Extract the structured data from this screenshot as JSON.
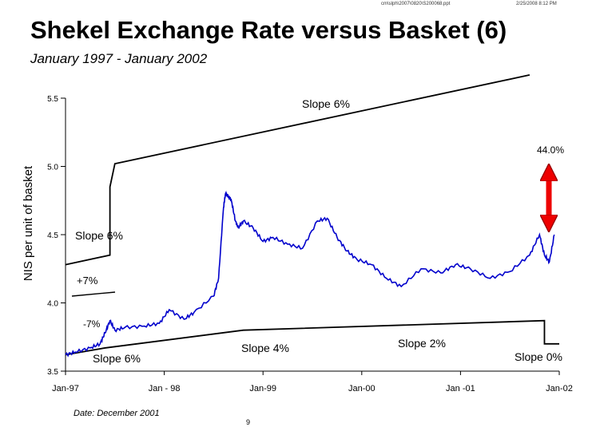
{
  "header": {
    "path": "cm\\slph\\2007\\0820\\S200068.ppt",
    "timestamp": "2/25/2008 8:12 PM"
  },
  "footer": {
    "date": "Date: December 2001",
    "page": "9"
  },
  "chart_data": {
    "type": "line",
    "title": "Shekel Exchange Rate versus Basket (6)",
    "subtitle": "January 1997 - January 2002",
    "ylabel": "NIS per unit of basket",
    "xlabel": "",
    "xlim": [
      1997.0,
      2002.0
    ],
    "ylim": [
      3.5,
      5.5
    ],
    "yticks": [
      3.5,
      4.0,
      4.5,
      5.0,
      5.5
    ],
    "ytick_labels": [
      "3.5",
      "4.0",
      "4.5",
      "5.0",
      "5.5"
    ],
    "xticks": [
      1997.0,
      1998.0,
      1999.0,
      2000.0,
      2001.0,
      2002.0
    ],
    "xtick_labels": [
      "Jan-97",
      "Jan - 98",
      "Jan-99",
      "Jan-00",
      "Jan -01",
      "Jan-02"
    ],
    "grid": false,
    "series": [
      {
        "name": "",
        "color": "#0000cc",
        "x": [
          1997.0,
          1997.1,
          1997.25,
          1997.35,
          1997.4,
          1997.45,
          1997.5,
          1997.6,
          1997.8,
          1997.95,
          1998.05,
          1998.2,
          1998.3,
          1998.5,
          1998.55,
          1998.6,
          1998.62,
          1998.65,
          1998.68,
          1998.72,
          1998.75,
          1998.8,
          1998.9,
          1999.0,
          1999.1,
          1999.25,
          1999.4,
          1999.55,
          1999.65,
          1999.75,
          1999.85,
          1999.95,
          2000.1,
          2000.25,
          2000.4,
          2000.6,
          2000.8,
          2000.95,
          2001.1,
          2001.3,
          2001.5,
          2001.7,
          2001.8,
          2001.85,
          2001.9,
          2001.95
        ],
        "y": [
          3.62,
          3.64,
          3.67,
          3.7,
          3.78,
          3.87,
          3.8,
          3.82,
          3.83,
          3.85,
          3.95,
          3.88,
          3.93,
          4.05,
          4.18,
          4.7,
          4.8,
          4.78,
          4.75,
          4.6,
          4.55,
          4.6,
          4.55,
          4.45,
          4.48,
          4.43,
          4.4,
          4.6,
          4.62,
          4.48,
          4.38,
          4.32,
          4.28,
          4.18,
          4.12,
          4.25,
          4.22,
          4.28,
          4.25,
          4.18,
          4.23,
          4.35,
          4.5,
          4.35,
          4.3,
          4.5
        ]
      }
    ],
    "basket_bands": [
      {
        "name": "upper",
        "x": [
          1997.0,
          1997.45,
          1997.45,
          1997.5,
          2001.7
        ],
        "y": [
          4.28,
          4.35,
          4.85,
          5.02,
          5.67
        ]
      },
      {
        "name": "lower",
        "x": [
          1997.0,
          1997.4,
          1998.8,
          2001.85,
          2001.85,
          2002.0
        ],
        "y": [
          3.62,
          3.67,
          3.8,
          3.87,
          3.7,
          3.7
        ]
      }
    ],
    "annotations": {
      "slope6_top": "Slope 6%",
      "slope6_mid": "Slope 6%",
      "plus7": "+7%",
      "minus7": "-7%",
      "slope6_bottom": "Slope 6%",
      "slope4": "Slope 4%",
      "slope2": "Slope 2%",
      "slope0": "Slope 0%",
      "gap_value": "44.0%"
    },
    "arrow_color": "#ee0000"
  }
}
